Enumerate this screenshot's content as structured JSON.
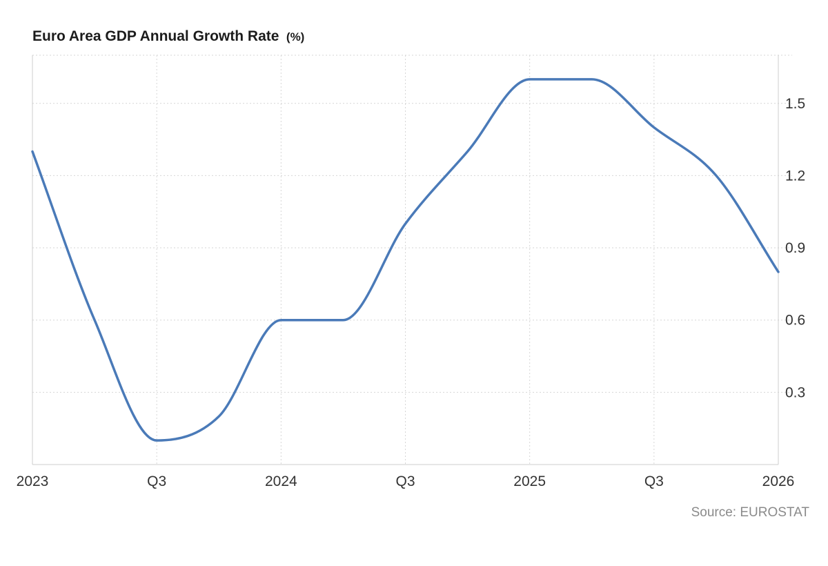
{
  "chart_data": {
    "type": "line",
    "title": "Euro Area GDP Annual Growth Rate",
    "title_unit": "(%)",
    "x_tick_labels": [
      "2023",
      "Q3",
      "2024",
      "Q3",
      "2025",
      "Q3",
      "2026"
    ],
    "x": [
      "2023 Q1",
      "2023 Q2",
      "2023 Q3",
      "2023 Q4",
      "2024 Q1",
      "2024 Q2",
      "2024 Q3",
      "2024 Q4",
      "2025 Q1",
      "2025 Q2",
      "2025 Q3",
      "2025 Q4",
      "2026 Q1"
    ],
    "series": [
      {
        "values": [
          1.3,
          0.6,
          0.1,
          0.2,
          0.6,
          0.6,
          1.0,
          1.3,
          1.6,
          1.6,
          1.4,
          1.2,
          0.8
        ],
        "color": "#4a7ab8"
      }
    ],
    "y_ticks": [
      "0.3",
      "0.6",
      "0.9",
      "1.2",
      "1.5"
    ],
    "ylim": [
      0.0,
      1.7
    ],
    "y_axis_side": "right",
    "grid": true,
    "source": "Source: EUROSTAT"
  }
}
